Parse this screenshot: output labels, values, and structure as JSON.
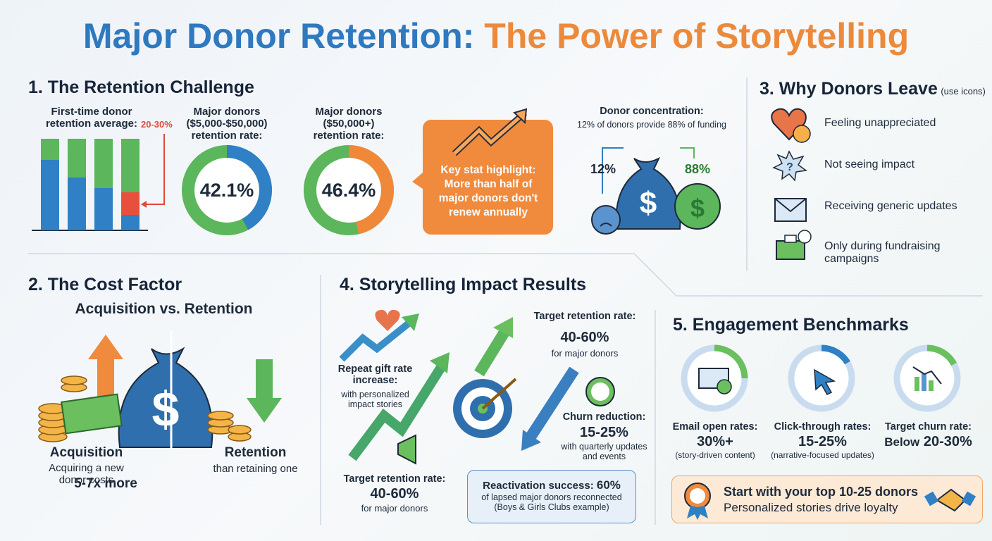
{
  "title": {
    "lead": "Major Donor Retention:",
    "accent": "The Power of Storytelling"
  },
  "retention_challenge": {
    "heading": "1. The Retention Challenge",
    "first_time": {
      "label": "First-time donor retention average:",
      "range": "20-30%"
    },
    "major_donors": [
      {
        "label": "Major donors ($5,000-$50,000) retention rate:",
        "value": 42.1,
        "value_label": "42.1%",
        "color": "#2f80c4"
      },
      {
        "label": "Major donors ($50,000+) retention rate:",
        "value": 46.4,
        "value_label": "46.4%",
        "color": "#f0883a"
      }
    ],
    "highlight": "Key stat highlight: More than half of major donors don't renew annually",
    "concentration": {
      "title": "Donor concentration:",
      "subtitle": "12% of donors provide 88% of funding",
      "left": "12%",
      "right": "88%"
    }
  },
  "why_leave": {
    "heading": "3. Why Donors Leave",
    "note": "(use icons)",
    "reasons": [
      "Feeling unappreciated",
      "Not seeing impact",
      "Receiving generic updates",
      "Only during fundraising campaigns"
    ]
  },
  "cost_factor": {
    "heading": "2. The Cost Factor",
    "subtitle": "Acquisition vs. Retention",
    "acquisition": {
      "title": "Acquisition",
      "text": "Acquiring a new donor costs",
      "emphasis": "5-7x more"
    },
    "retention": {
      "title": "Retention",
      "text": "than retaining one"
    }
  },
  "storytelling": {
    "heading": "4. Storytelling Impact Results",
    "repeat_gift": {
      "title": "Repeat gift rate increase:",
      "note": "with personalized impact stories"
    },
    "target_top": {
      "title": "Target retention rate:",
      "value": "40-60%",
      "note": "for major donors"
    },
    "churn": {
      "title": "Churn reduction:",
      "value": "15-25%",
      "note": "with quarterly updates and events"
    },
    "target_bottom": {
      "title": "Target retention rate:",
      "value": "40-60%",
      "note": "for major donors"
    },
    "reactivation": {
      "title": "Reactivation success:",
      "value": "60%",
      "note": "of lapsed major donors reconnected",
      "example": "(Boys & Girls Clubs example)"
    }
  },
  "benchmarks": {
    "heading": "5. Engagement Benchmarks",
    "items": [
      {
        "title": "Email open rates:",
        "value": "30%+",
        "note": "(story-driven content)"
      },
      {
        "title": "Click-through rates:",
        "value": "15-25%",
        "note": "(narrative-focused updates)"
      },
      {
        "title": "Target churn rate:",
        "prefix": "Below",
        "value": "20-30%"
      }
    ],
    "callout": {
      "title": "Start with your top 10-25 donors",
      "text": "Personalized stories drive loyalty"
    }
  }
}
